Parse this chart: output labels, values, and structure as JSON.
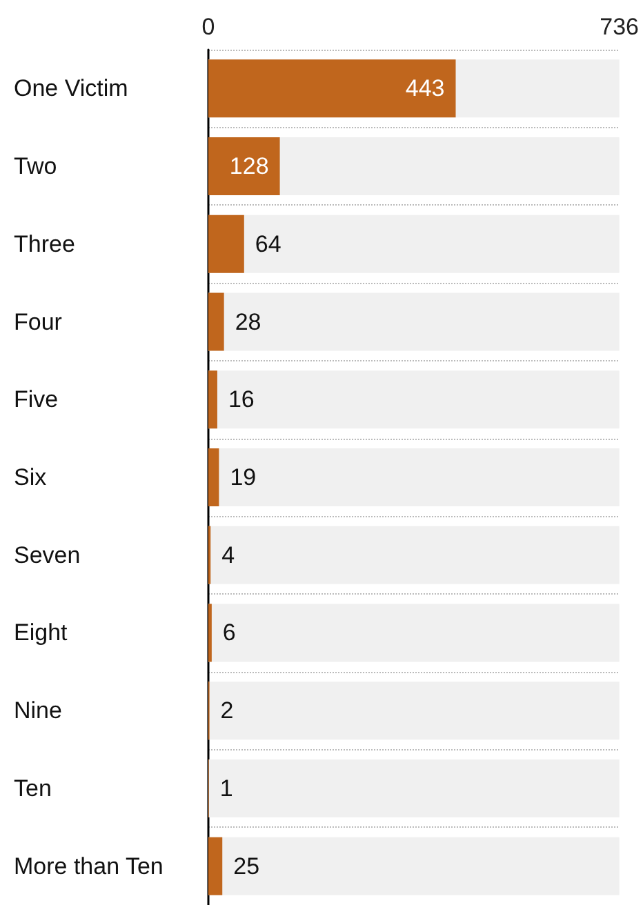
{
  "chart_data": {
    "type": "bar",
    "orientation": "horizontal",
    "categories": [
      "One Victim",
      "Two",
      "Three",
      "Four",
      "Five",
      "Six",
      "Seven",
      "Eight",
      "Nine",
      "Ten",
      "More than Ten"
    ],
    "values": [
      443,
      128,
      64,
      28,
      16,
      19,
      4,
      6,
      2,
      1,
      25
    ],
    "color": "#c0661d",
    "xlim": [
      0,
      736
    ],
    "xticks": [
      0,
      736
    ],
    "data_labels": true,
    "grid": "y"
  }
}
